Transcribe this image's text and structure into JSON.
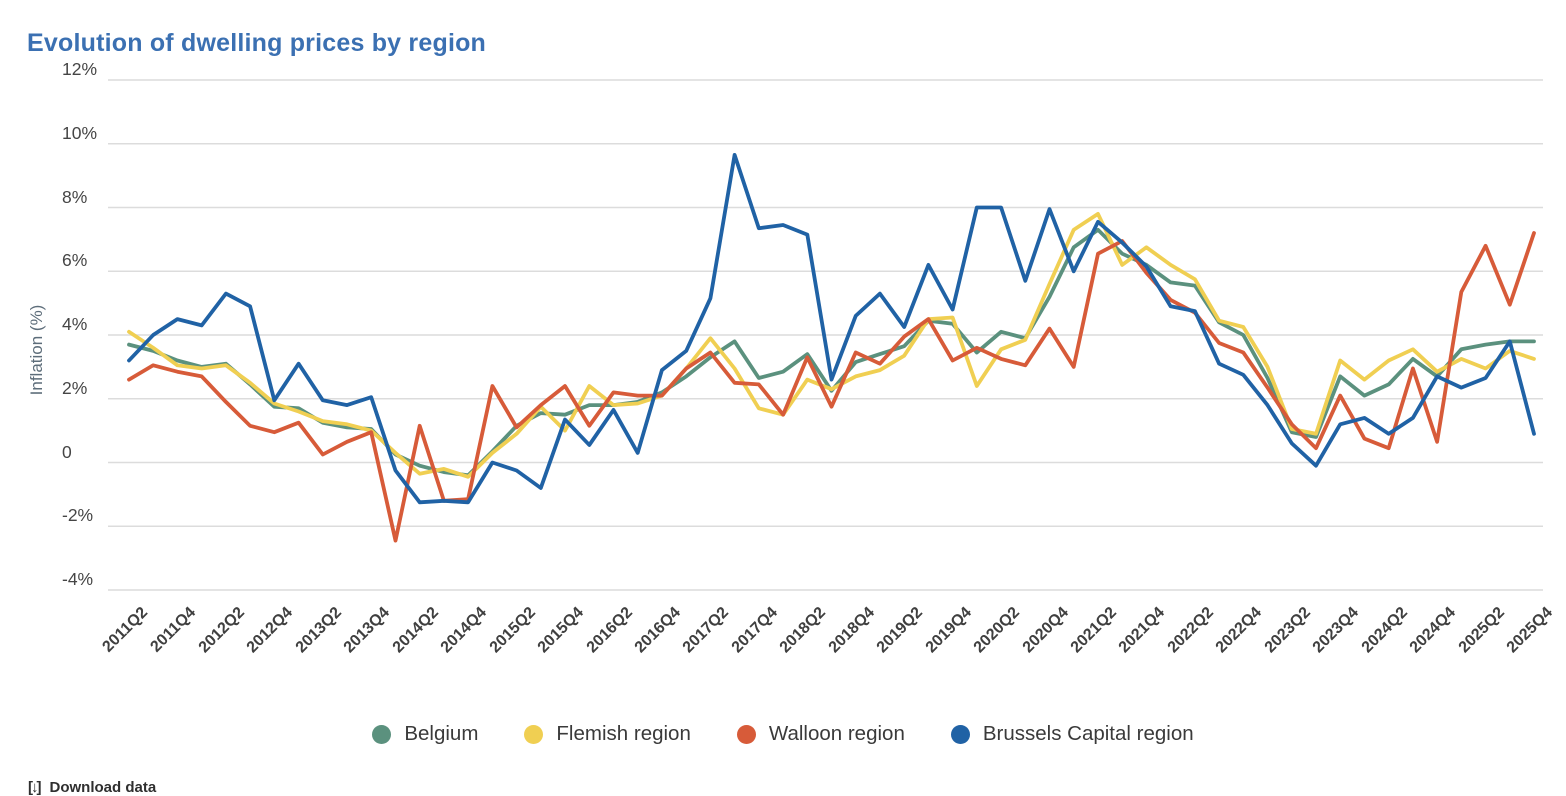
{
  "title": "Evolution of dwelling prices by region",
  "colors": {
    "title": "#3B70B2",
    "grid": "#DCDCDC",
    "axis_text": "#454545",
    "belgium": "#5B917E",
    "flemish": "#F0CF52",
    "walloon": "#D75B39",
    "brussels": "#2062A5"
  },
  "y_axis": {
    "title": "Inflation (%)",
    "ticks": [
      {
        "label": "12%",
        "value": 12
      },
      {
        "label": "10%",
        "value": 10
      },
      {
        "label": "8%",
        "value": 8
      },
      {
        "label": "6%",
        "value": 6
      },
      {
        "label": "4%",
        "value": 4
      },
      {
        "label": "2%",
        "value": 2
      },
      {
        "label": "0",
        "value": 0
      },
      {
        "label": "-2%",
        "value": -2
      },
      {
        "label": "-4%",
        "value": -4
      }
    ]
  },
  "x_axis": {
    "labels": [
      "2011Q2",
      "2011Q4",
      "2012Q2",
      "2012Q4",
      "2013Q2",
      "2013Q4",
      "2014Q2",
      "2014Q4",
      "2015Q2",
      "2015Q4",
      "2016Q2",
      "2016Q4",
      "2017Q2",
      "2017Q4",
      "2018Q2",
      "2018Q4",
      "2019Q2",
      "2019Q4",
      "2020Q2",
      "2020Q4",
      "2021Q2",
      "2021Q4",
      "2022Q2",
      "2022Q4",
      "2023Q2",
      "2023Q4",
      "2024Q2",
      "2024Q4",
      "2025Q2",
      "2025Q4"
    ]
  },
  "legend": [
    "Belgium",
    "Flemish region",
    "Walloon region",
    "Brussels Capital region"
  ],
  "footer": {
    "icon": "download-icon",
    "text": "Download data"
  },
  "chart_data": {
    "type": "line",
    "title": "Evolution of dwelling prices by region",
    "ylabel": "Inflation (%)",
    "ylim": [
      -4,
      12
    ],
    "grid": "horizontal",
    "legend_position": "bottom",
    "x": [
      "2011Q2",
      "2011Q3",
      "2011Q4",
      "2012Q1",
      "2012Q2",
      "2012Q3",
      "2012Q4",
      "2013Q1",
      "2013Q2",
      "2013Q3",
      "2013Q4",
      "2014Q1",
      "2014Q2",
      "2014Q3",
      "2014Q4",
      "2015Q1",
      "2015Q2",
      "2015Q3",
      "2015Q4",
      "2016Q1",
      "2016Q2",
      "2016Q3",
      "2016Q4",
      "2017Q1",
      "2017Q2",
      "2017Q3",
      "2017Q4",
      "2018Q1",
      "2018Q2",
      "2018Q3",
      "2018Q4",
      "2019Q1",
      "2019Q2",
      "2019Q3",
      "2019Q4",
      "2020Q1",
      "2020Q2",
      "2020Q3",
      "2020Q4",
      "2021Q1",
      "2021Q2",
      "2021Q3",
      "2021Q4",
      "2022Q1",
      "2022Q2",
      "2022Q3",
      "2022Q4",
      "2023Q1",
      "2023Q2",
      "2023Q3",
      "2023Q4",
      "2024Q1",
      "2024Q2",
      "2024Q3",
      "2024Q4",
      "2025Q1",
      "2025Q2",
      "2025Q3",
      "2025Q4"
    ],
    "series": [
      {
        "name": "Belgium",
        "color": "#5B917E",
        "values": [
          3.7,
          3.5,
          3.2,
          3.0,
          3.1,
          2.45,
          1.75,
          1.7,
          1.25,
          1.1,
          1.05,
          0.25,
          -0.1,
          -0.3,
          -0.4,
          0.35,
          1.15,
          1.55,
          1.5,
          1.8,
          1.8,
          1.9,
          2.2,
          2.7,
          3.3,
          3.8,
          2.65,
          2.85,
          3.4,
          2.25,
          3.15,
          3.4,
          3.65,
          4.45,
          4.35,
          3.45,
          4.1,
          3.9,
          5.2,
          6.75,
          7.3,
          6.55,
          6.2,
          5.65,
          5.55,
          4.4,
          4.0,
          2.65,
          0.95,
          0.8,
          2.7,
          2.1,
          2.45,
          3.25,
          2.7,
          3.55,
          3.7,
          3.8,
          3.8
        ]
      },
      {
        "name": "Flemish region",
        "color": "#F0CF52",
        "values": [
          4.1,
          3.6,
          3.05,
          2.95,
          3.05,
          2.5,
          1.85,
          1.6,
          1.3,
          1.2,
          1.0,
          0.3,
          -0.35,
          -0.2,
          -0.45,
          0.3,
          0.9,
          1.75,
          1.0,
          2.4,
          1.8,
          1.85,
          2.1,
          2.95,
          3.9,
          2.95,
          1.7,
          1.5,
          2.6,
          2.3,
          2.7,
          2.9,
          3.35,
          4.5,
          4.55,
          2.4,
          3.55,
          3.85,
          5.6,
          7.3,
          7.8,
          6.2,
          6.75,
          6.2,
          5.75,
          4.45,
          4.25,
          3.0,
          1.05,
          0.9,
          3.2,
          2.6,
          3.2,
          3.55,
          2.85,
          3.25,
          2.95,
          3.5,
          3.25
        ]
      },
      {
        "name": "Walloon region",
        "color": "#D75B39",
        "values": [
          2.6,
          3.05,
          2.85,
          2.7,
          1.9,
          1.15,
          0.95,
          1.25,
          0.25,
          0.65,
          0.95,
          -2.45,
          1.15,
          -1.2,
          -1.15,
          2.4,
          1.1,
          1.8,
          2.4,
          1.15,
          2.2,
          2.1,
          2.1,
          2.95,
          3.45,
          2.5,
          2.45,
          1.5,
          3.3,
          1.75,
          3.45,
          3.1,
          3.95,
          4.5,
          3.2,
          3.6,
          3.25,
          3.05,
          4.2,
          3.0,
          6.55,
          6.95,
          5.95,
          5.1,
          4.7,
          3.75,
          3.45,
          2.35,
          1.2,
          0.45,
          2.1,
          0.75,
          0.45,
          2.95,
          0.65,
          5.35,
          6.8,
          4.95,
          7.2
        ]
      },
      {
        "name": "Brussels Capital region",
        "color": "#2062A5",
        "values": [
          3.2,
          4.0,
          4.5,
          4.3,
          5.3,
          4.9,
          1.95,
          3.1,
          1.95,
          1.8,
          2.05,
          -0.25,
          -1.25,
          -1.2,
          -1.25,
          0.0,
          -0.25,
          -0.8,
          1.35,
          0.55,
          1.65,
          0.3,
          2.9,
          3.5,
          5.15,
          9.65,
          7.35,
          7.45,
          7.15,
          2.6,
          4.6,
          5.3,
          4.25,
          6.2,
          4.8,
          8.0,
          8.0,
          5.7,
          7.95,
          6.0,
          7.55,
          6.9,
          6.15,
          4.9,
          4.75,
          3.1,
          2.75,
          1.8,
          0.6,
          -0.1,
          1.2,
          1.4,
          0.9,
          1.4,
          2.7,
          2.35,
          2.65,
          3.8,
          0.9
        ]
      }
    ]
  }
}
